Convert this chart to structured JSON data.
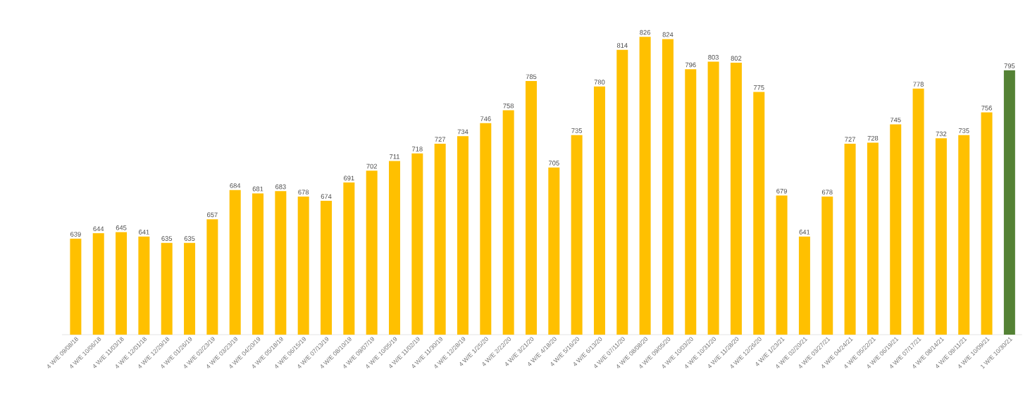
{
  "chart_data": {
    "type": "bar",
    "categories": [
      "4 W/E 09/08/18",
      "4 W/E 10/06/18",
      "4 W/E 11/03/18",
      "4 W/E 12/01/18",
      "4 W/E 12/29/18",
      "4 W/E 01/26/19",
      "4 W/E 02/23/19",
      "4 W/E 03/23/19",
      "4 W/E 04/20/19",
      "4 W/E 05/18/19",
      "4 W/E 06/15/19",
      "4 W/E 07/13/19",
      "4 W/E 08/10/19",
      "4 W/E 09/07/19",
      "4 W/E 10/05/19",
      "4 W/E 11/02/19",
      "4 W/E 11/30/19",
      "4 W/E 12/28/19",
      "4 W/E 1/25/20",
      "4 W/E 2/22/20",
      "4 W/E 3/21/20",
      "4 W/E 4/18/20",
      "4 W/E 5/16/20",
      "4 W/E 6/13/20",
      "4 W/E 07/11/20",
      "4 W/E 08/08/20",
      "4 W/E 09/05/20",
      "4 W/E 10/03/20",
      "4 W/E 10/31/20",
      "4 W/E 11/28/20",
      "4 W/E 12/26/20",
      "4 W/E 1/23/21",
      "4 W/E 02/20/21",
      "4 W/E 03/27/21",
      "4 W/E 04/24/21",
      "4 W/E 05/22/21",
      "4 W/E 06/19/21",
      "4 W/E 07/17/21",
      "4 W/E 08/14/21",
      "4 W/E 09/11/21",
      "4 W/E 10/09/21",
      "1 W/E 10/30/21"
    ],
    "values": [
      639,
      644,
      645,
      641,
      635,
      635,
      657,
      684,
      681,
      683,
      678,
      674,
      691,
      702,
      711,
      718,
      727,
      734,
      746,
      758,
      785,
      705,
      735,
      780,
      814,
      826,
      824,
      796,
      803,
      802,
      775,
      679,
      641,
      678,
      727,
      728,
      745,
      778,
      732,
      735,
      756,
      795
    ],
    "colors": [
      "#ffc000",
      "#ffc000",
      "#ffc000",
      "#ffc000",
      "#ffc000",
      "#ffc000",
      "#ffc000",
      "#ffc000",
      "#ffc000",
      "#ffc000",
      "#ffc000",
      "#ffc000",
      "#ffc000",
      "#ffc000",
      "#ffc000",
      "#ffc000",
      "#ffc000",
      "#ffc000",
      "#ffc000",
      "#ffc000",
      "#ffc000",
      "#ffc000",
      "#ffc000",
      "#ffc000",
      "#ffc000",
      "#ffc000",
      "#ffc000",
      "#ffc000",
      "#ffc000",
      "#ffc000",
      "#ffc000",
      "#ffc000",
      "#ffc000",
      "#ffc000",
      "#ffc000",
      "#ffc000",
      "#ffc000",
      "#ffc000",
      "#ffc000",
      "#ffc000",
      "#ffc000",
      "#548235"
    ],
    "ylim": [
      550,
      826
    ],
    "data_labels": true,
    "tick_labels": "x"
  }
}
